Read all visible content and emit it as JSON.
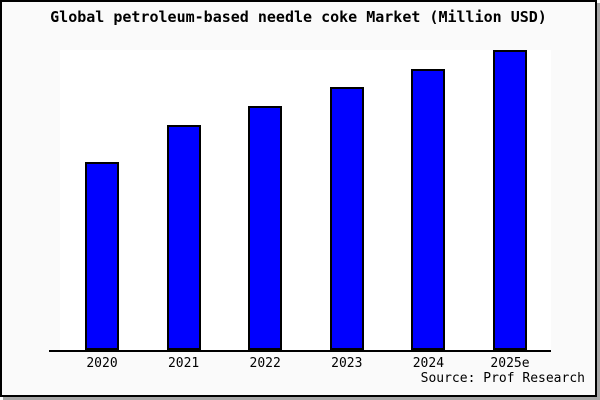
{
  "chart_data": {
    "type": "bar",
    "title": "Global petroleum-based needle coke Market (Million USD)",
    "categories": [
      "2020",
      "2021",
      "2022",
      "2023",
      "2024",
      "2025e"
    ],
    "values": [
      188,
      225,
      244,
      263,
      281,
      300
    ],
    "value_note": "no y-axis or data labels shown; values are relative bar heights estimated from pixels",
    "xlabel": "",
    "ylabel": "",
    "ylim": [
      0,
      300
    ],
    "grid": false,
    "y_axis_visible": false,
    "legend": null,
    "bar_color": "#0000ff",
    "bar_border_color": "#000000",
    "source_credit": "Source: Prof Research"
  },
  "colors": {
    "canvas_background": "#fafafa",
    "plot_background": "#ffffff",
    "frame_border": "#000000",
    "shadow": "#a6a6a6",
    "text": "#000000"
  }
}
